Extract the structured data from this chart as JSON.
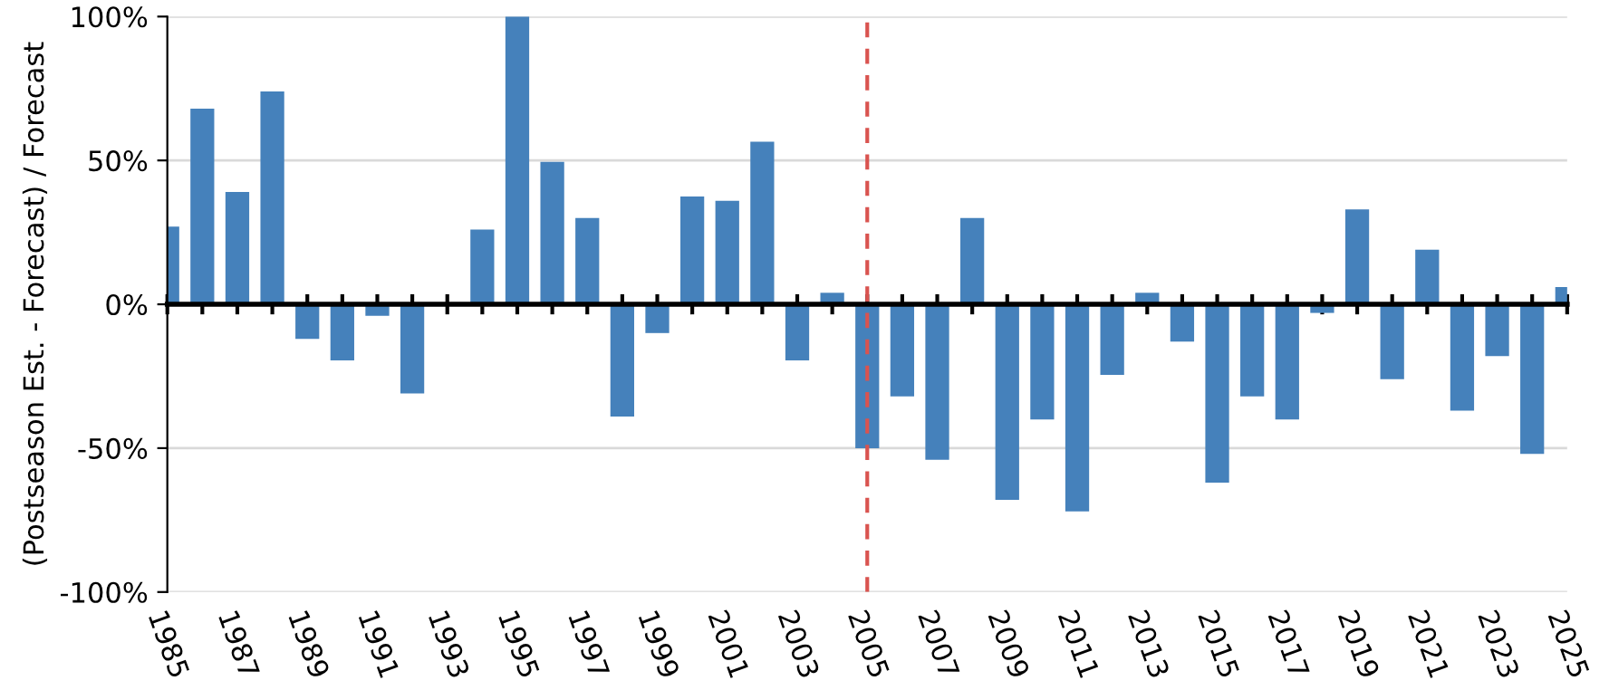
{
  "chart_data": {
    "type": "bar",
    "ylabel": "(Postseason Est. - Forecast) / Forecast",
    "x": [
      1985,
      1986,
      1987,
      1988,
      1989,
      1990,
      1991,
      1992,
      1993,
      1994,
      1995,
      1996,
      1997,
      1998,
      1999,
      2000,
      2001,
      2002,
      2003,
      2004,
      2005,
      2006,
      2007,
      2008,
      2009,
      2010,
      2011,
      2012,
      2013,
      2014,
      2015,
      2016,
      2017,
      2018,
      2019,
      2020,
      2021,
      2022,
      2023,
      2024,
      2025
    ],
    "series": [
      {
        "color": "#4581bb",
        "values": [
          27,
          68,
          39,
          74,
          -12,
          -19.5,
          -4,
          -31,
          0,
          26,
          100,
          49.5,
          30,
          -39,
          -10,
          37.5,
          36,
          56.5,
          -19.5,
          4,
          -50,
          -32,
          -54,
          30,
          -68,
          -40,
          -72,
          -24.5,
          4,
          -13,
          -62,
          -32,
          -40,
          -3,
          33,
          -26,
          19,
          -37,
          -18,
          -52,
          6
        ]
      }
    ],
    "xlim": [
      1985,
      2025
    ],
    "xticks": [
      1985,
      {
        "value": 1986,
        "label": null
      },
      1987,
      {
        "value": 1988,
        "label": null
      },
      1989,
      {
        "value": 1990,
        "label": null
      },
      1991,
      {
        "value": 1992,
        "label": null
      },
      1993,
      {
        "value": 1994,
        "label": null
      },
      1995,
      {
        "value": 1996,
        "label": null
      },
      1997,
      {
        "value": 1998,
        "label": null
      },
      1999,
      {
        "value": 2000,
        "label": null
      },
      2001,
      {
        "value": 2002,
        "label": null
      },
      2003,
      {
        "value": 2004,
        "label": null
      },
      2005,
      {
        "value": 2006,
        "label": null
      },
      2007,
      {
        "value": 2008,
        "label": null
      },
      2009,
      {
        "value": 2010,
        "label": null
      },
      2011,
      {
        "value": 2012,
        "label": null
      },
      2013,
      {
        "value": 2014,
        "label": null
      },
      2015,
      {
        "value": 2016,
        "label": null
      },
      2017,
      {
        "value": 2018,
        "label": null
      },
      2019,
      {
        "value": 2020,
        "label": null
      },
      2021,
      {
        "value": 2022,
        "label": null
      },
      2023,
      {
        "value": 2024,
        "label": null
      },
      2025
    ],
    "ylim": [
      -100,
      100
    ],
    "yticks": [
      {
        "value": -100,
        "label": "-100%"
      },
      {
        "value": -50,
        "label": "-50%"
      },
      {
        "value": 0,
        "label": "0%"
      },
      {
        "value": 50,
        "label": "50%"
      },
      {
        "value": 100,
        "label": "100%"
      }
    ],
    "grid": "y",
    "legend": false,
    "ref_lines": [
      {
        "axis": "x",
        "value": 2005,
        "color": "#d9534f",
        "line_style": "dashed"
      }
    ]
  }
}
